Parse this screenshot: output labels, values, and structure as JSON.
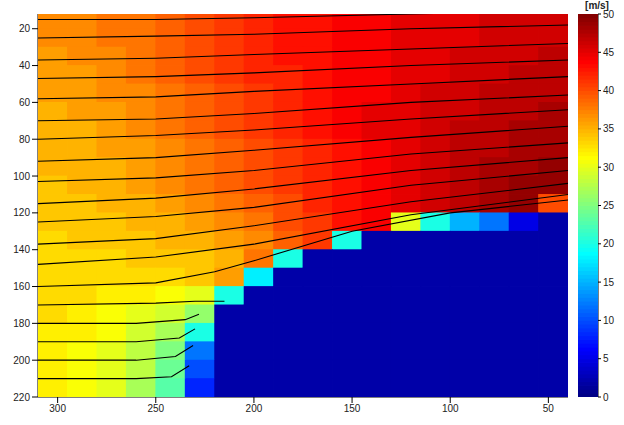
{
  "chart_data": {
    "type": "heatmap",
    "xlim": [
      310,
      40
    ],
    "xticks": [
      300,
      250,
      200,
      150,
      100,
      50
    ],
    "ylim": [
      220,
      12
    ],
    "yticks": [
      20,
      40,
      60,
      80,
      100,
      120,
      140,
      160,
      180,
      200,
      220
    ],
    "x_edges": [
      310,
      295,
      280,
      265,
      250,
      235,
      220,
      205,
      190,
      175,
      160,
      145,
      130,
      115,
      100,
      85,
      70,
      55,
      40
    ],
    "y_edges": [
      12,
      20,
      30,
      40,
      50,
      60,
      70,
      80,
      90,
      100,
      110,
      120,
      130,
      140,
      150,
      160,
      170,
      180,
      190,
      200,
      210,
      220
    ],
    "cells": [
      [
        37,
        37,
        38,
        38,
        39,
        40,
        41,
        42,
        43,
        43,
        44,
        44,
        45,
        45,
        45,
        46,
        46,
        46
      ],
      [
        37,
        37,
        38,
        38,
        39,
        40,
        41,
        42,
        43,
        43,
        44,
        44,
        45,
        45,
        45,
        46,
        46,
        46
      ],
      [
        36,
        37,
        37,
        38,
        39,
        40,
        41,
        42,
        43,
        43,
        44,
        44,
        45,
        45,
        46,
        46,
        46,
        47
      ],
      [
        36,
        36,
        37,
        38,
        39,
        40,
        41,
        42,
        42,
        43,
        44,
        44,
        45,
        45,
        46,
        46,
        47,
        47
      ],
      [
        36,
        36,
        37,
        37,
        38,
        39,
        40,
        41,
        42,
        43,
        44,
        44,
        45,
        46,
        46,
        47,
        47,
        47
      ],
      [
        35,
        36,
        36,
        37,
        38,
        39,
        40,
        41,
        42,
        43,
        44,
        45,
        45,
        46,
        46,
        47,
        47,
        48
      ],
      [
        35,
        35,
        36,
        37,
        38,
        39,
        40,
        41,
        42,
        43,
        44,
        45,
        45,
        46,
        47,
        47,
        48,
        48
      ],
      [
        35,
        35,
        36,
        36,
        37,
        38,
        39,
        40,
        41,
        42,
        43,
        44,
        45,
        46,
        47,
        47,
        48,
        48
      ],
      [
        35,
        35,
        35,
        36,
        37,
        38,
        39,
        40,
        41,
        42,
        43,
        44,
        45,
        46,
        47,
        48,
        48,
        49
      ],
      [
        34,
        35,
        35,
        36,
        37,
        38,
        39,
        40,
        41,
        42,
        43,
        44,
        45,
        46,
        47,
        48,
        49,
        49
      ],
      [
        34,
        34,
        35,
        35,
        36,
        37,
        38,
        39,
        40,
        42,
        43,
        44,
        45,
        46,
        47,
        48,
        49,
        40
      ],
      [
        34,
        34,
        34,
        35,
        35,
        36,
        37,
        38,
        40,
        41,
        43,
        44,
        30,
        20,
        15,
        12,
        5,
        2
      ],
      [
        33,
        34,
        34,
        34,
        35,
        35,
        36,
        37,
        39,
        41,
        20,
        2,
        2,
        2,
        2,
        2,
        2,
        2
      ],
      [
        33,
        33,
        33,
        34,
        34,
        34,
        35,
        38,
        20,
        2,
        2,
        2,
        2,
        2,
        2,
        2,
        2,
        2
      ],
      [
        33,
        33,
        33,
        33,
        33,
        34,
        36,
        18,
        2,
        2,
        2,
        2,
        2,
        2,
        2,
        2,
        2,
        2
      ],
      [
        33,
        33,
        32,
        32,
        31,
        30,
        20,
        2,
        2,
        2,
        2,
        2,
        2,
        2,
        2,
        2,
        2,
        2
      ],
      [
        33,
        32,
        31,
        30,
        29,
        26,
        2,
        2,
        2,
        2,
        2,
        2,
        2,
        2,
        2,
        2,
        2,
        2
      ],
      [
        32,
        32,
        31,
        29,
        27,
        20,
        2,
        2,
        2,
        2,
        2,
        2,
        2,
        2,
        2,
        2,
        2,
        2
      ],
      [
        32,
        31,
        30,
        28,
        25,
        12,
        2,
        2,
        2,
        2,
        2,
        2,
        2,
        2,
        2,
        2,
        2,
        2
      ],
      [
        32,
        31,
        30,
        28,
        24,
        10,
        2,
        2,
        2,
        2,
        2,
        2,
        2,
        2,
        2,
        2,
        2,
        2
      ],
      [
        32,
        31,
        30,
        27,
        23,
        8,
        2,
        2,
        2,
        2,
        2,
        2,
        2,
        2,
        2,
        2,
        2,
        2
      ]
    ],
    "colorbar": {
      "label": "[m/s]",
      "range": [
        0,
        50
      ],
      "ticks": [
        0,
        5,
        10,
        15,
        20,
        25,
        30,
        35,
        40,
        45,
        50
      ],
      "color": "jet"
    },
    "streamlines": {
      "color": "#000000",
      "lines": [
        {
          "x": [
            310,
            250,
            200,
            120,
            40
          ],
          "y": [
            15,
            15,
            14,
            12,
            10
          ]
        },
        {
          "x": [
            310,
            250,
            200,
            120,
            40
          ],
          "y": [
            25,
            24,
            23,
            20,
            18
          ]
        },
        {
          "x": [
            310,
            250,
            200,
            120,
            40
          ],
          "y": [
            37,
            36,
            34,
            31,
            28
          ]
        },
        {
          "x": [
            310,
            250,
            200,
            120,
            40
          ],
          "y": [
            47,
            46,
            44,
            40,
            37
          ]
        },
        {
          "x": [
            310,
            250,
            200,
            120,
            40
          ],
          "y": [
            58,
            57,
            54,
            50,
            46
          ]
        },
        {
          "x": [
            310,
            250,
            200,
            120,
            40
          ],
          "y": [
            70,
            69,
            66,
            60,
            56
          ]
        },
        {
          "x": [
            310,
            250,
            200,
            120,
            40
          ],
          "y": [
            80,
            78,
            75,
            69,
            64
          ]
        },
        {
          "x": [
            310,
            250,
            200,
            120,
            40
          ],
          "y": [
            92,
            90,
            86,
            79,
            73
          ]
        },
        {
          "x": [
            310,
            250,
            200,
            120,
            40
          ],
          "y": [
            103,
            101,
            97,
            88,
            82
          ]
        },
        {
          "x": [
            310,
            250,
            200,
            120,
            40
          ],
          "y": [
            115,
            112,
            107,
            97,
            90
          ]
        },
        {
          "x": [
            310,
            250,
            200,
            120,
            40
          ],
          "y": [
            125,
            122,
            117,
            105,
            97
          ]
        },
        {
          "x": [
            310,
            250,
            200,
            120,
            40
          ],
          "y": [
            137,
            134,
            127,
            114,
            104
          ]
        },
        {
          "x": [
            310,
            250,
            200,
            120,
            40
          ],
          "y": [
            148,
            144,
            137,
            121,
            110
          ]
        },
        {
          "x": [
            310,
            250,
            220,
            200,
            150,
            100,
            40
          ],
          "y": [
            160,
            158,
            152,
            146,
            130,
            120,
            113
          ]
        },
        {
          "x": [
            310,
            250,
            230,
            215
          ],
          "y": [
            170,
            169,
            168,
            168
          ]
        },
        {
          "x": [
            310,
            260,
            235,
            228
          ],
          "y": [
            180,
            180,
            178,
            175
          ]
        },
        {
          "x": [
            310,
            260,
            238,
            230
          ],
          "y": [
            190,
            190,
            188,
            183
          ]
        },
        {
          "x": [
            310,
            260,
            240,
            231
          ],
          "y": [
            200,
            200,
            198,
            192
          ]
        },
        {
          "x": [
            310,
            260,
            242,
            233
          ],
          "y": [
            210,
            210,
            209,
            203
          ]
        }
      ]
    }
  }
}
